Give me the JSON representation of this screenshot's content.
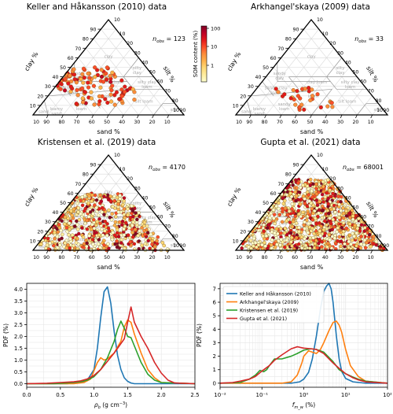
{
  "colors": {
    "keller": "#1f77b4",
    "arkhangelskaya": "#ff7f0e",
    "kristensen": "#2ca02c",
    "gupta": "#d62728",
    "grid": "#d9d9d9",
    "class_line": "#9a9a9a",
    "class_text": "#a8a8a8",
    "colormap": [
      "#ffffcc",
      "#ffeda0",
      "#fed976",
      "#feb24c",
      "#fd8d3c",
      "#fc4e2a",
      "#e31a1c",
      "#bd0026",
      "#800026"
    ]
  },
  "colorbar": {
    "label": "SOM content (%)",
    "ticks": [
      "100",
      "10",
      "1"
    ]
  },
  "ternary_axes": {
    "clay_label": "clay %",
    "silt_label": "silt %",
    "sand_label": "sand %",
    "clay_ticks": [
      "10",
      "20",
      "30",
      "40",
      "50",
      "60",
      "70",
      "80",
      "90"
    ],
    "silt_ticks": [
      "10",
      "20",
      "30",
      "40",
      "50",
      "60",
      "70",
      "80",
      "90"
    ],
    "sand_ticks": [
      "90",
      "80",
      "70",
      "60",
      "50",
      "40",
      "30",
      "20",
      "10"
    ],
    "apex_clay": "10",
    "apex_silt": "10",
    "apex_sand": "10",
    "class_labels": [
      "clay",
      "silty clay",
      "sandy clay",
      "clay loam",
      "silty clay loam",
      "sandy clay loam",
      "loam",
      "silt loam",
      "sandy loam",
      "silt",
      "loamy sand",
      "sand"
    ]
  },
  "chart_data": [
    {
      "type": "scatter",
      "subtype": "ternary",
      "title": "Keller and Håkansson (2010) data",
      "n_label": "n",
      "n_sub": "obs",
      "n_value": "= 123",
      "point_count": 123,
      "cluster": {
        "sand": [
          20,
          70
        ],
        "clay": [
          10,
          50
        ]
      }
    },
    {
      "type": "scatter",
      "subtype": "ternary",
      "title": "Arkhangel'skaya (2009) data",
      "n_label": "n",
      "n_sub": "obs",
      "n_value": "= 33",
      "point_count": 33,
      "cluster": {
        "sand": [
          30,
          60
        ],
        "clay": [
          5,
          30
        ]
      }
    },
    {
      "type": "scatter",
      "subtype": "ternary",
      "title": "Kristensen et al. (2019) data",
      "n_label": "n",
      "n_sub": "obs",
      "n_value": "= 4170",
      "point_count": 4170,
      "cluster": {
        "sand": [
          10,
          95
        ],
        "clay": [
          0,
          60
        ]
      }
    },
    {
      "type": "scatter",
      "subtype": "ternary",
      "title": "Gupta et al. (2021) data",
      "n_label": "n",
      "n_sub": "obs",
      "n_value": "= 68001",
      "point_count": 68001,
      "cluster": {
        "sand": [
          0,
          95
        ],
        "clay": [
          0,
          75
        ]
      }
    },
    {
      "type": "line",
      "xlabel_main": "ρ",
      "xlabel_sub": "b",
      "xlabel_unit": " (g cm",
      "xlabel_sup": "−3",
      "xlabel_close": ")",
      "ylabel": "PDF (%)",
      "xlim": [
        0,
        2.5
      ],
      "ylim": [
        -0.15,
        4.25
      ],
      "xticks": [
        "0.0",
        "0.5",
        "1.0",
        "1.5",
        "2.0",
        "2.5"
      ],
      "yticks": [
        "0.0",
        "0.5",
        "1.0",
        "1.5",
        "2.0",
        "2.5",
        "3.0",
        "3.5",
        "4.0"
      ],
      "series": [
        {
          "name": "Keller and Håkansson (2010)",
          "color": "#1f77b4",
          "x": [
            0,
            0.6,
            0.8,
            0.9,
            1.0,
            1.05,
            1.1,
            1.15,
            1.2,
            1.25,
            1.3,
            1.35,
            1.4,
            1.45,
            1.5,
            1.55,
            1.6,
            1.7,
            2.5
          ],
          "y": [
            0,
            0,
            0.05,
            0.15,
            0.6,
            1.5,
            2.8,
            3.9,
            4.1,
            3.4,
            2.2,
            1.2,
            0.6,
            0.25,
            0.1,
            0.03,
            0,
            0,
            0
          ]
        },
        {
          "name": "Arkhangel'skaya (2009)",
          "color": "#ff7f0e",
          "x": [
            0,
            0.7,
            0.85,
            0.95,
            1.0,
            1.05,
            1.1,
            1.15,
            1.2,
            1.3,
            1.4,
            1.45,
            1.5,
            1.55,
            1.6,
            1.7,
            1.8,
            1.9,
            2.0,
            2.5
          ],
          "y": [
            0,
            0,
            0.05,
            0.2,
            0.55,
            0.9,
            1.1,
            1.0,
            1.05,
            1.3,
            1.8,
            2.4,
            2.7,
            2.6,
            2.1,
            1.3,
            0.6,
            0.25,
            0.05,
            0
          ]
        },
        {
          "name": "Kristensen et al. (2019)",
          "color": "#2ca02c",
          "x": [
            0,
            0.4,
            0.6,
            0.8,
            0.9,
            1.0,
            1.1,
            1.2,
            1.3,
            1.35,
            1.4,
            1.45,
            1.5,
            1.55,
            1.6,
            1.7,
            1.8,
            1.9,
            2.0,
            2.5
          ],
          "y": [
            0,
            0,
            0.03,
            0.08,
            0.15,
            0.3,
            0.6,
            1.1,
            1.8,
            2.3,
            2.65,
            2.35,
            2.0,
            1.95,
            1.6,
            0.9,
            0.4,
            0.15,
            0.05,
            0
          ]
        },
        {
          "name": "Gupta et al. (2021)",
          "color": "#d62728",
          "x": [
            0,
            0.3,
            0.5,
            0.7,
            0.8,
            0.9,
            1.0,
            1.1,
            1.2,
            1.3,
            1.4,
            1.45,
            1.5,
            1.55,
            1.6,
            1.65,
            1.7,
            1.8,
            1.9,
            2.0,
            2.1,
            2.2,
            2.5
          ],
          "y": [
            0,
            0.02,
            0.05,
            0.08,
            0.12,
            0.2,
            0.35,
            0.6,
            0.95,
            1.3,
            1.7,
            1.9,
            2.6,
            3.25,
            2.6,
            2.3,
            2.0,
            1.5,
            0.9,
            0.45,
            0.15,
            0.03,
            0
          ]
        }
      ]
    },
    {
      "type": "line",
      "xscale": "log",
      "xlabel_main": "f",
      "xlabel_sub": "m_w",
      "xlabel_unit": " (%)",
      "ylabel": "PDF (%)",
      "xlim": [
        0.01,
        100
      ],
      "ylim": [
        -0.3,
        7.4
      ],
      "xticks": [
        "10⁻²",
        "10⁻¹",
        "10⁰",
        "10¹",
        "10²"
      ],
      "yticks": [
        "0",
        "1",
        "2",
        "3",
        "4",
        "5",
        "6",
        "7"
      ],
      "legend": "top-left",
      "series": [
        {
          "name": "Keller and Håkansson (2010)",
          "color": "#1f77b4",
          "x": [
            0.01,
            0.5,
            0.8,
            1.0,
            1.3,
            1.6,
            2.0,
            2.5,
            3.0,
            3.5,
            4.0,
            4.5,
            5.0,
            6.0,
            7.0,
            8.0,
            10.0,
            15.0,
            30.0,
            100.0
          ],
          "y": [
            0,
            0,
            0.1,
            0.3,
            0.8,
            1.8,
            3.5,
            5.5,
            6.8,
            7.2,
            7.4,
            7.0,
            6.0,
            3.5,
            1.8,
            0.9,
            0.35,
            0.1,
            0,
            0
          ]
        },
        {
          "name": "Arkhangel'skaya (2009)",
          "color": "#ff7f0e",
          "x": [
            0.01,
            0.3,
            0.5,
            0.7,
            0.9,
            1.0,
            1.3,
            1.6,
            2.0,
            2.5,
            3.0,
            4.0,
            5.0,
            6.0,
            7.0,
            8.0,
            10.0,
            13.0,
            20.0,
            30.0,
            100.0
          ],
          "y": [
            0,
            0,
            0.1,
            0.6,
            1.5,
            2.0,
            2.4,
            2.3,
            2.2,
            2.5,
            3.0,
            3.9,
            4.5,
            4.6,
            4.3,
            3.8,
            2.5,
            1.3,
            0.5,
            0.15,
            0
          ]
        },
        {
          "name": "Kristensen et al. (2019)",
          "color": "#2ca02c",
          "x": [
            0.01,
            0.03,
            0.05,
            0.07,
            0.09,
            0.11,
            0.13,
            0.15,
            0.2,
            0.3,
            0.5,
            0.7,
            1.0,
            1.5,
            2.0,
            3.0,
            5.0,
            7.0,
            10.0,
            15.0,
            20.0,
            30.0,
            100.0
          ],
          "y": [
            0,
            0.05,
            0.3,
            0.6,
            0.95,
            0.85,
            1.0,
            1.3,
            1.8,
            1.8,
            2.0,
            2.2,
            2.45,
            2.55,
            2.5,
            2.3,
            1.6,
            1.0,
            0.7,
            0.45,
            0.3,
            0.15,
            0
          ]
        },
        {
          "name": "Gupta et al. (2021)",
          "color": "#d62728",
          "x": [
            0.01,
            0.02,
            0.03,
            0.05,
            0.07,
            0.1,
            0.15,
            0.2,
            0.3,
            0.5,
            0.7,
            1.0,
            1.5,
            2.0,
            3.0,
            4.0,
            5.0,
            7.0,
            10.0,
            15.0,
            20.0,
            30.0,
            100.0
          ],
          "y": [
            0,
            0.05,
            0.15,
            0.3,
            0.5,
            0.9,
            1.3,
            1.7,
            2.1,
            2.55,
            2.7,
            2.6,
            2.55,
            2.5,
            2.2,
            1.8,
            1.5,
            1.1,
            0.7,
            0.4,
            0.25,
            0.1,
            0
          ]
        }
      ]
    }
  ]
}
